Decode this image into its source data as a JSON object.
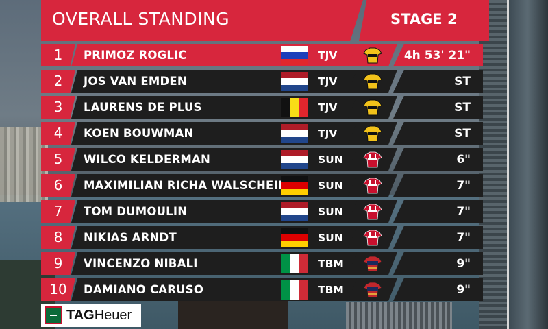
{
  "header": {
    "title": "OVERALL STANDING",
    "stage": "STAGE 2"
  },
  "sponsor": {
    "brand_bold": "TAG",
    "brand_rest": "Heuer"
  },
  "colors": {
    "accent": "#d7263d",
    "row_bg": "#1e1e1e",
    "jumbo_yellow": "#f2c21a",
    "sunweb_red": "#c8102e",
    "bahrain_red": "#c1272d"
  },
  "rows": [
    {
      "pos": "1",
      "name": "PRIMOZ ROGLIC",
      "flag": "slovenia-flag",
      "team": "TJV",
      "jersey": "jumbo-visma-jersey-icon",
      "gap": "4h 53' 21\""
    },
    {
      "pos": "2",
      "name": "JOS VAN EMDEN",
      "flag": "netherlands-flag",
      "team": "TJV",
      "jersey": "jumbo-visma-jersey-icon",
      "gap": "ST"
    },
    {
      "pos": "3",
      "name": "LAURENS DE PLUS",
      "flag": "belgium-flag",
      "team": "TJV",
      "jersey": "jumbo-visma-jersey-icon",
      "gap": "ST"
    },
    {
      "pos": "4",
      "name": "KOEN BOUWMAN",
      "flag": "netherlands-flag",
      "team": "TJV",
      "jersey": "jumbo-visma-jersey-icon",
      "gap": "ST"
    },
    {
      "pos": "5",
      "name": "WILCO KELDERMAN",
      "flag": "netherlands-flag",
      "team": "SUN",
      "jersey": "sunweb-jersey-icon",
      "gap": "6\""
    },
    {
      "pos": "6",
      "name": "MAXIMILIAN RICHA WALSCHEID",
      "flag": "germany-flag",
      "team": "SUN",
      "jersey": "sunweb-jersey-icon",
      "gap": "7\""
    },
    {
      "pos": "7",
      "name": "TOM DUMOULIN",
      "flag": "netherlands-flag",
      "team": "SUN",
      "jersey": "sunweb-jersey-icon",
      "gap": "7\""
    },
    {
      "pos": "8",
      "name": "NIKIAS ARNDT",
      "flag": "germany-flag",
      "team": "SUN",
      "jersey": "sunweb-jersey-icon",
      "gap": "7\""
    },
    {
      "pos": "9",
      "name": "VINCENZO NIBALI",
      "flag": "italy-flag",
      "team": "TBM",
      "jersey": "bahrain-merida-jersey-icon",
      "gap": "9\""
    },
    {
      "pos": "10",
      "name": "DAMIANO CARUSO",
      "flag": "italy-flag",
      "team": "TBM",
      "jersey": "bahrain-merida-jersey-icon",
      "gap": "9\""
    }
  ]
}
